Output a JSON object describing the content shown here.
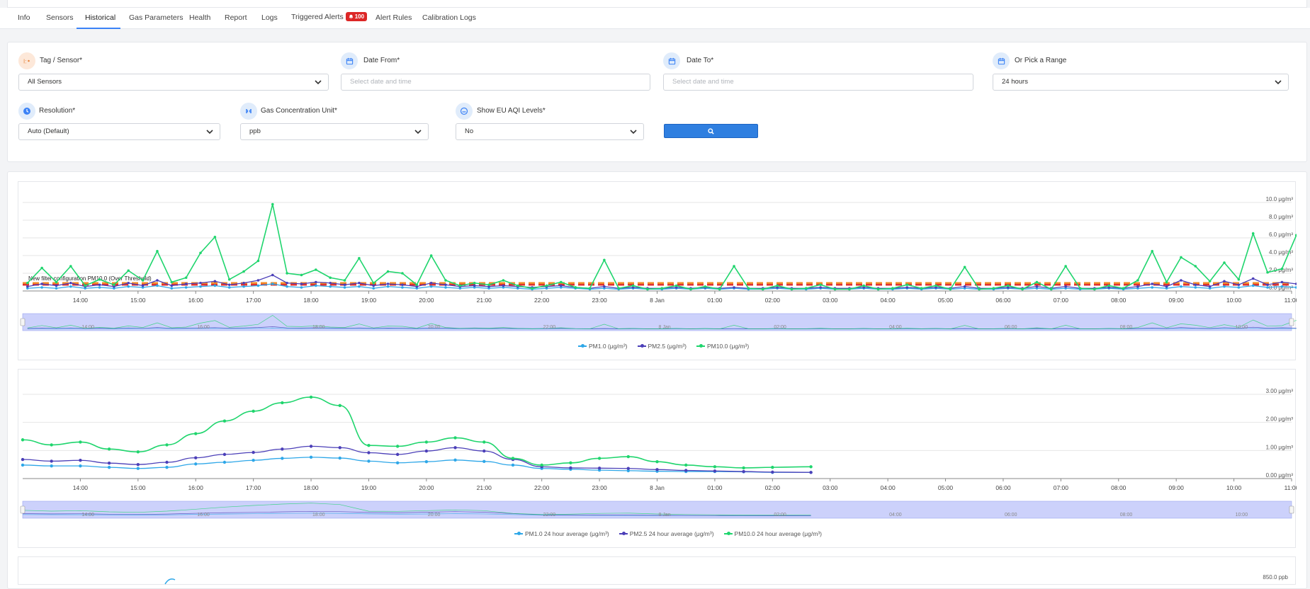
{
  "tabs": [
    {
      "label": "Info"
    },
    {
      "label": "Sensors"
    },
    {
      "label": "Historical"
    },
    {
      "label": "Gas Parameters"
    },
    {
      "label": "Health"
    },
    {
      "label": "Report"
    },
    {
      "label": "Logs"
    },
    {
      "label": "Triggered Alerts",
      "badge": "100"
    },
    {
      "label": "Alert Rules"
    },
    {
      "label": "Calibration Logs"
    }
  ],
  "active_tab": "Historical",
  "filters": {
    "tag_sensor": {
      "label": "Tag / Sensor*",
      "value": "All Sensors",
      "icon": "tag-icon"
    },
    "date_from": {
      "label": "Date From*",
      "placeholder": "Select date and time",
      "icon": "calendar-icon"
    },
    "date_to": {
      "label": "Date To*",
      "placeholder": "Select date and time",
      "icon": "calendar-icon"
    },
    "range": {
      "label": "Or Pick a Range",
      "value": "24 hours",
      "icon": "calendar-icon"
    },
    "resolution": {
      "label": "Resolution*",
      "value": "Auto (Default)",
      "icon": "clock-icon"
    },
    "gas_unit": {
      "label": "Gas Concentration Unit*",
      "value": "ppb",
      "icon": "gas-icon"
    },
    "aqi": {
      "label": "Show EU AQI Levels*",
      "value": "No",
      "icon": "gauge-icon"
    },
    "search_icon": "search-icon"
  },
  "colors": {
    "accent": "#2f7fe0",
    "pm1": "#2ea7e8",
    "pm25": "#4b3fb8",
    "pm10": "#1fd56d",
    "threshold_orange": "#f28c28",
    "threshold_red": "#e03131",
    "badge": "#dc2626",
    "navigator": "#ccd1fb"
  },
  "x_ticks": [
    "14:00",
    "15:00",
    "16:00",
    "17:00",
    "18:00",
    "19:00",
    "20:00",
    "21:00",
    "22:00",
    "23:00",
    "8 Jan",
    "01:00",
    "02:00",
    "03:00",
    "04:00",
    "05:00",
    "06:00",
    "07:00",
    "08:00",
    "09:00",
    "10:00",
    "11:00"
  ],
  "navigator_ticks": [
    "14:00",
    "16:00",
    "18:00",
    "20:00",
    "22:00",
    "8 Jan",
    "02:00",
    "04:00",
    "06:00",
    "08:00",
    "10:00"
  ],
  "chart_data": [
    {
      "type": "line",
      "title": "",
      "y_ticks": [
        "0.0 μg/m³",
        "2.0 μg/m³",
        "4.0 μg/m³",
        "6.0 μg/m³",
        "8.0 μg/m³",
        "10.0 μg/m³"
      ],
      "ylim": [
        0,
        10
      ],
      "x": [
        "13:05",
        "13:20",
        "13:35",
        "13:50",
        "14:05",
        "14:20",
        "14:35",
        "14:50",
        "15:05",
        "15:20",
        "15:35",
        "15:50",
        "16:05",
        "16:20",
        "16:35",
        "16:50",
        "17:05",
        "17:20",
        "17:35",
        "17:50",
        "18:05",
        "18:20",
        "18:35",
        "18:50",
        "19:05",
        "19:20",
        "19:35",
        "19:50",
        "20:05",
        "20:20",
        "20:35",
        "20:50",
        "21:05",
        "21:20",
        "21:35",
        "21:50",
        "22:05",
        "22:20",
        "22:35",
        "22:50",
        "23:05",
        "23:20",
        "23:35",
        "23:50",
        "00:05",
        "00:20",
        "00:35",
        "00:50",
        "01:05",
        "01:20",
        "01:35",
        "01:50",
        "02:05",
        "02:20",
        "02:35",
        "02:50",
        "03:05",
        "03:20",
        "03:35",
        "03:50",
        "04:05",
        "04:20",
        "04:35",
        "04:50",
        "05:05",
        "05:20",
        "05:35",
        "05:50",
        "06:05",
        "06:20",
        "06:35",
        "06:50",
        "07:05",
        "07:20",
        "07:35",
        "07:50",
        "08:05",
        "08:20",
        "08:35",
        "08:50",
        "09:05",
        "09:20",
        "09:35",
        "09:50",
        "10:05",
        "10:20",
        "10:35",
        "10:50",
        "11:05"
      ],
      "series": [
        {
          "name": "PM1.0 (μg/m³)",
          "values": [
            0.3,
            0.4,
            0.3,
            0.5,
            0.3,
            0.4,
            0.3,
            0.5,
            0.4,
            0.6,
            0.3,
            0.4,
            0.5,
            0.6,
            0.4,
            0.5,
            0.6,
            0.8,
            0.5,
            0.4,
            0.6,
            0.5,
            0.4,
            0.5,
            0.3,
            0.5,
            0.4,
            0.3,
            0.5,
            0.4,
            0.3,
            0.4,
            0.3,
            0.4,
            0.3,
            0.2,
            0.3,
            0.4,
            0.3,
            0.2,
            0.3,
            0.2,
            0.3,
            0.2,
            0.2,
            0.3,
            0.2,
            0.3,
            0.2,
            0.3,
            0.2,
            0.2,
            0.3,
            0.2,
            0.2,
            0.3,
            0.2,
            0.2,
            0.3,
            0.2,
            0.2,
            0.3,
            0.2,
            0.3,
            0.2,
            0.3,
            0.2,
            0.2,
            0.3,
            0.2,
            0.3,
            0.2,
            0.3,
            0.2,
            0.2,
            0.3,
            0.2,
            0.3,
            0.4,
            0.3,
            0.5,
            0.4,
            0.3,
            0.5,
            0.4,
            0.6,
            0.4,
            0.5,
            0.4
          ]
        },
        {
          "name": "PM2.5 (μg/m³)",
          "values": [
            0.5,
            0.8,
            0.6,
            0.9,
            0.5,
            0.7,
            0.5,
            0.9,
            0.6,
            1.2,
            0.6,
            0.8,
            0.9,
            1.1,
            0.7,
            0.9,
            1.2,
            1.8,
            0.9,
            0.8,
            1.0,
            0.9,
            0.7,
            0.9,
            0.6,
            0.8,
            0.7,
            0.5,
            0.9,
            0.7,
            0.5,
            0.6,
            0.5,
            0.6,
            0.5,
            0.4,
            0.5,
            0.6,
            0.4,
            0.3,
            0.5,
            0.3,
            0.4,
            0.3,
            0.3,
            0.4,
            0.3,
            0.4,
            0.3,
            0.4,
            0.3,
            0.3,
            0.4,
            0.3,
            0.3,
            0.4,
            0.3,
            0.3,
            0.4,
            0.3,
            0.3,
            0.4,
            0.3,
            0.4,
            0.3,
            0.5,
            0.3,
            0.3,
            0.4,
            0.3,
            0.5,
            0.3,
            0.5,
            0.3,
            0.3,
            0.4,
            0.3,
            0.5,
            0.8,
            0.5,
            1.2,
            0.7,
            0.5,
            1.1,
            0.7,
            1.4,
            0.7,
            1.0,
            0.8
          ]
        },
        {
          "name": "PM10.0 (μg/m³)",
          "values": [
            0.9,
            2.6,
            1.0,
            2.8,
            0.6,
            1.3,
            0.7,
            2.3,
            1.2,
            4.5,
            1.0,
            1.5,
            4.3,
            6.1,
            1.3,
            2.2,
            3.4,
            9.8,
            2.0,
            1.8,
            2.4,
            1.5,
            1.2,
            3.7,
            0.9,
            2.2,
            2.0,
            0.7,
            4.0,
            1.2,
            0.6,
            0.9,
            0.7,
            1.2,
            0.6,
            0.3,
            0.6,
            1.0,
            0.4,
            0.3,
            3.5,
            0.3,
            0.6,
            0.2,
            0.3,
            0.6,
            0.2,
            0.5,
            0.2,
            2.8,
            0.3,
            0.2,
            0.6,
            0.2,
            0.3,
            0.7,
            0.2,
            0.2,
            0.6,
            0.2,
            0.3,
            0.7,
            0.3,
            0.6,
            0.2,
            2.7,
            0.2,
            0.3,
            0.6,
            0.2,
            1.0,
            0.2,
            2.8,
            0.3,
            0.2,
            0.6,
            0.3,
            1.2,
            4.5,
            1.0,
            3.8,
            2.8,
            1.1,
            3.2,
            1.3,
            6.5,
            2.1,
            2.5,
            6.3
          ]
        }
      ],
      "threshold_label": "New filter configuration PM10.0 (Over Threshold)",
      "thresholds": [
        0.9,
        0.7
      ]
    },
    {
      "type": "line",
      "title": "",
      "y_ticks": [
        "0.00 μg/m³",
        "1.00 μg/m³",
        "2.00 μg/m³",
        "3.00 μg/m³"
      ],
      "ylim": [
        0,
        3
      ],
      "x": [
        "13:00",
        "13:30",
        "14:00",
        "14:30",
        "15:00",
        "15:30",
        "16:00",
        "16:30",
        "17:00",
        "17:30",
        "18:00",
        "18:30",
        "19:00",
        "19:30",
        "20:00",
        "20:30",
        "21:00",
        "21:30",
        "22:00",
        "22:30",
        "23:00",
        "23:30",
        "00:00",
        "00:30",
        "01:00",
        "01:30",
        "02:00",
        "02:40"
      ],
      "series": [
        {
          "name": "PM1.0 24 hour average (μg/m³)",
          "values": [
            0.48,
            0.45,
            0.45,
            0.4,
            0.36,
            0.4,
            0.52,
            0.58,
            0.65,
            0.72,
            0.76,
            0.73,
            0.62,
            0.56,
            0.6,
            0.66,
            0.61,
            0.48,
            0.36,
            0.33,
            0.3,
            0.28,
            0.26,
            0.25,
            0.25,
            0.24,
            0.22,
            0.22
          ]
        },
        {
          "name": "PM2.5 24 hour average (μg/m³)",
          "values": [
            0.68,
            0.62,
            0.65,
            0.55,
            0.5,
            0.58,
            0.74,
            0.86,
            0.93,
            1.05,
            1.15,
            1.1,
            0.92,
            0.86,
            0.98,
            1.1,
            0.98,
            0.68,
            0.42,
            0.38,
            0.37,
            0.36,
            0.32,
            0.29,
            0.27,
            0.25,
            0.23,
            0.22
          ]
        },
        {
          "name": "PM10.0 24 hour average (μg/m³)",
          "values": [
            1.38,
            1.2,
            1.3,
            1.05,
            0.95,
            1.2,
            1.6,
            2.05,
            2.4,
            2.7,
            2.9,
            2.6,
            1.18,
            1.15,
            1.3,
            1.45,
            1.3,
            0.72,
            0.48,
            0.56,
            0.72,
            0.78,
            0.6,
            0.48,
            0.42,
            0.38,
            0.4,
            0.42
          ]
        }
      ]
    }
  ],
  "third_chart": {
    "y_tick": "850.0 ppb"
  }
}
